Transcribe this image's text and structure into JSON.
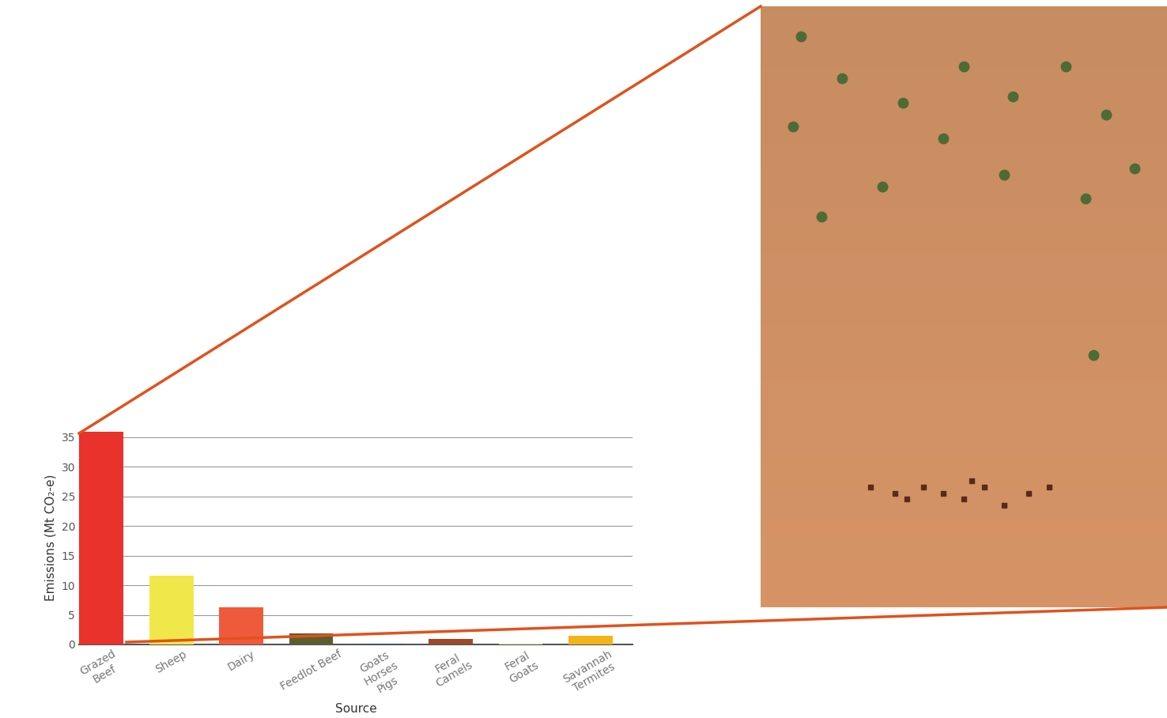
{
  "chart_data": {
    "type": "bar",
    "categories": [
      "Grazed\nBeef",
      "Sheep",
      "Dairy",
      "Feedlot Beef",
      "Goats\nHorses\nPigs",
      "Feral\nCamels",
      "Feral\nGoats",
      "Savannah\nTermites"
    ],
    "values": [
      36,
      11.6,
      6.3,
      1.9,
      0.2,
      0.9,
      0.2,
      1.5
    ],
    "colors": [
      "#e8322b",
      "#f0e84a",
      "#f05a3c",
      "#5a5e2e",
      "#3b4a8a",
      "#9b4a2a",
      "#e3e08a",
      "#f5b31a"
    ],
    "x_label": "Source",
    "y_label": "Emissions (Mt CO₂-e)",
    "ylim": [
      0,
      36
    ],
    "yticks": [
      0,
      5,
      10,
      15,
      20,
      25,
      30,
      35
    ],
    "grid": true
  }
}
